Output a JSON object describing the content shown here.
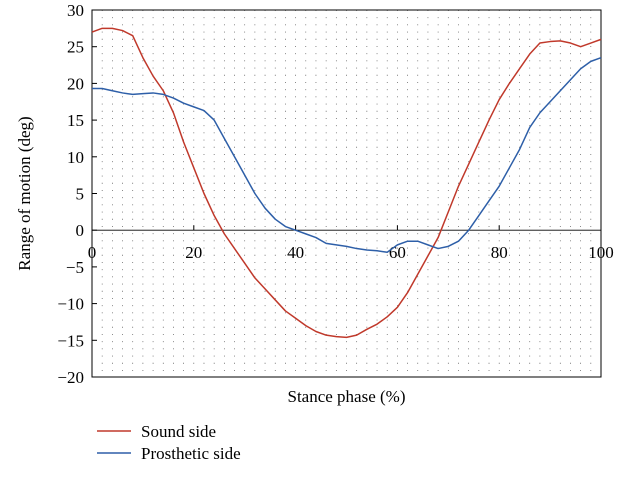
{
  "chart_data": {
    "type": "line",
    "title": "",
    "xlabel": "Stance phase (%)",
    "ylabel": "Range of motion (deg)",
    "xlim": [
      0,
      100
    ],
    "ylim": [
      -20,
      30
    ],
    "x_ticks": [
      0,
      20,
      40,
      60,
      80,
      100
    ],
    "y_ticks": [
      30,
      25,
      20,
      15,
      10,
      5,
      0,
      -5,
      -10,
      -15,
      -20
    ],
    "grid": "dotted",
    "legend_position": "bottom-left, below plot",
    "series": [
      {
        "name": "Sound side",
        "color": "#c0392b",
        "x": [
          0,
          2,
          4,
          6,
          8,
          10,
          12,
          14,
          16,
          18,
          20,
          22,
          24,
          26,
          28,
          30,
          32,
          34,
          36,
          38,
          40,
          42,
          44,
          46,
          48,
          50,
          52,
          54,
          56,
          58,
          60,
          62,
          64,
          66,
          68,
          70,
          72,
          74,
          76,
          78,
          80,
          82,
          84,
          86,
          88,
          90,
          92,
          94,
          96,
          98,
          100
        ],
        "y": [
          27.0,
          27.5,
          27.5,
          27.2,
          26.5,
          23.5,
          21.0,
          19.0,
          16.0,
          12.0,
          8.5,
          5.0,
          2.0,
          -0.5,
          -2.5,
          -4.5,
          -6.5,
          -8.0,
          -9.5,
          -11.0,
          -12.0,
          -13.0,
          -13.8,
          -14.3,
          -14.5,
          -14.6,
          -14.3,
          -13.5,
          -12.8,
          -11.8,
          -10.5,
          -8.5,
          -6.0,
          -3.5,
          -1.0,
          2.5,
          6.0,
          9.0,
          12.0,
          15.0,
          17.8,
          20.0,
          22.0,
          24.0,
          25.5,
          25.7,
          25.8,
          25.5,
          25.0,
          25.5,
          26.0
        ]
      },
      {
        "name": "Prosthetic side",
        "color": "#2e5fa8",
        "x": [
          0,
          2,
          4,
          6,
          8,
          10,
          12,
          14,
          16,
          18,
          20,
          22,
          24,
          26,
          28,
          30,
          32,
          34,
          36,
          38,
          40,
          42,
          44,
          46,
          48,
          50,
          52,
          54,
          56,
          58,
          59,
          60,
          62,
          64,
          66,
          68,
          70,
          72,
          74,
          76,
          78,
          80,
          82,
          84,
          86,
          88,
          90,
          92,
          94,
          96,
          98,
          100
        ],
        "y": [
          19.3,
          19.3,
          19.0,
          18.7,
          18.5,
          18.6,
          18.7,
          18.5,
          18.0,
          17.3,
          16.8,
          16.3,
          15.0,
          12.5,
          10.0,
          7.5,
          5.0,
          3.0,
          1.5,
          0.5,
          0.0,
          -0.5,
          -1.0,
          -1.8,
          -2.0,
          -2.2,
          -2.5,
          -2.7,
          -2.8,
          -3.0,
          -2.5,
          -2.0,
          -1.5,
          -1.5,
          -2.0,
          -2.5,
          -2.2,
          -1.5,
          0.0,
          2.0,
          4.0,
          6.0,
          8.5,
          11.0,
          14.0,
          16.0,
          17.5,
          19.0,
          20.5,
          22.0,
          23.0,
          23.5
        ]
      }
    ]
  }
}
